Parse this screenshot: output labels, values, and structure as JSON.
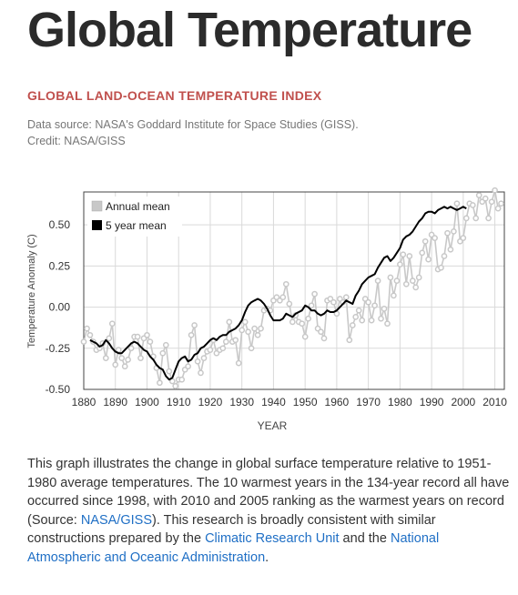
{
  "page": {
    "title": "Global Temperature",
    "subtitle": "GLOBAL LAND-OCEAN TEMPERATURE INDEX",
    "source": "Data source: NASA's Goddard Institute for Space Studies (GISS). Credit: NASA/GISS"
  },
  "description": {
    "text_1": "This graph illustrates the change in global surface temperature relative to 1951-1980 average temperatures. The 10 warmest years in the 134-year record all have occurred since 1998, with 2010 and 2005 ranking as the warmest years on record (Source: ",
    "link_1": "NASA/GISS",
    "text_2": "). This research is broadly consistent with similar constructions prepared by the ",
    "link_2": "Climatic Research Unit",
    "text_3": " and the ",
    "link_3": "National Atmospheric and Oceanic Administration",
    "text_4": "."
  },
  "colors": {
    "annual": "#c8c8c8",
    "five_year": "#000000",
    "subtitle": "#c0504d",
    "link": "#1f6fc5"
  },
  "chart_data": {
    "type": "line",
    "title": "",
    "xlabel": "YEAR",
    "ylabel": "Temperature Anomaly (C)",
    "xlim": [
      1880,
      2013
    ],
    "ylim": [
      -0.5,
      0.7
    ],
    "xticks": [
      "1880",
      "1890",
      "1900",
      "1910",
      "1920",
      "1930",
      "1940",
      "1950",
      "1960",
      "1970",
      "1980",
      "1990",
      "2000",
      "2010"
    ],
    "yticks": [
      "-0.50",
      "-0.25",
      "0.00",
      "0.25",
      "0.50"
    ],
    "grid": true,
    "legend_position": "top-left",
    "series": [
      {
        "name": "Annual mean",
        "style": "line-markers",
        "x_start": 1880,
        "values": [
          -0.21,
          -0.13,
          -0.17,
          -0.21,
          -0.26,
          -0.25,
          -0.22,
          -0.31,
          -0.19,
          -0.1,
          -0.35,
          -0.26,
          -0.31,
          -0.36,
          -0.32,
          -0.25,
          -0.18,
          -0.18,
          -0.31,
          -0.19,
          -0.17,
          -0.21,
          -0.3,
          -0.37,
          -0.46,
          -0.28,
          -0.23,
          -0.39,
          -0.45,
          -0.48,
          -0.44,
          -0.44,
          -0.38,
          -0.36,
          -0.17,
          -0.11,
          -0.33,
          -0.4,
          -0.31,
          -0.27,
          -0.26,
          -0.2,
          -0.28,
          -0.26,
          -0.25,
          -0.21,
          -0.09,
          -0.21,
          -0.2,
          -0.34,
          -0.14,
          -0.09,
          -0.15,
          -0.25,
          -0.13,
          -0.17,
          -0.13,
          -0.02,
          -0.01,
          -0.02,
          0.04,
          0.06,
          0.04,
          0.06,
          0.14,
          0.02,
          -0.09,
          -0.05,
          -0.09,
          -0.1,
          -0.18,
          -0.07,
          0.01,
          0.08,
          -0.13,
          -0.15,
          -0.19,
          0.04,
          0.05,
          0.03,
          -0.04,
          0.05,
          0.03,
          0.06,
          -0.2,
          -0.11,
          -0.06,
          -0.02,
          -0.08,
          0.05,
          0.03,
          -0.08,
          0.01,
          0.16,
          -0.07,
          -0.01,
          -0.1,
          0.18,
          0.07,
          0.16,
          0.26,
          0.32,
          0.14,
          0.31,
          0.16,
          0.12,
          0.18,
          0.33,
          0.4,
          0.29,
          0.44,
          0.42,
          0.23,
          0.24,
          0.31,
          0.45,
          0.35,
          0.46,
          0.63,
          0.4,
          0.42,
          0.54,
          0.63,
          0.62,
          0.54,
          0.68,
          0.64,
          0.66,
          0.54,
          0.64,
          0.71,
          0.6,
          0.63
        ]
      },
      {
        "name": "5 year mean",
        "style": "line",
        "x_start": 1882,
        "values": [
          -0.2,
          -0.21,
          -0.22,
          -0.24,
          -0.23,
          -0.2,
          -0.22,
          -0.25,
          -0.27,
          -0.28,
          -0.28,
          -0.26,
          -0.24,
          -0.22,
          -0.21,
          -0.22,
          -0.24,
          -0.26,
          -0.27,
          -0.3,
          -0.32,
          -0.35,
          -0.37,
          -0.38,
          -0.42,
          -0.44,
          -0.43,
          -0.38,
          -0.33,
          -0.31,
          -0.3,
          -0.33,
          -0.32,
          -0.29,
          -0.28,
          -0.25,
          -0.24,
          -0.22,
          -0.2,
          -0.19,
          -0.2,
          -0.18,
          -0.17,
          -0.17,
          -0.15,
          -0.14,
          -0.13,
          -0.11,
          -0.08,
          -0.03,
          0.01,
          0.03,
          0.04,
          0.05,
          0.04,
          0.02,
          -0.01,
          -0.05,
          -0.08,
          -0.08,
          -0.08,
          -0.07,
          -0.04,
          -0.05,
          -0.06,
          -0.04,
          -0.03,
          -0.02,
          0.01,
          0.0,
          -0.02,
          -0.02,
          -0.04,
          -0.05,
          -0.04,
          -0.02,
          -0.03,
          -0.03,
          -0.02,
          0.0,
          0.02,
          0.04,
          0.03,
          0.02,
          0.07,
          0.1,
          0.14,
          0.16,
          0.18,
          0.19,
          0.2,
          0.24,
          0.27,
          0.3,
          0.31,
          0.28,
          0.3,
          0.33,
          0.36,
          0.41,
          0.43,
          0.44,
          0.46,
          0.49,
          0.52,
          0.54,
          0.57,
          0.58,
          0.58,
          0.57,
          0.59,
          0.6,
          0.61,
          0.6,
          0.61,
          0.6,
          0.59,
          0.6,
          0.61,
          0.6
        ]
      }
    ]
  }
}
